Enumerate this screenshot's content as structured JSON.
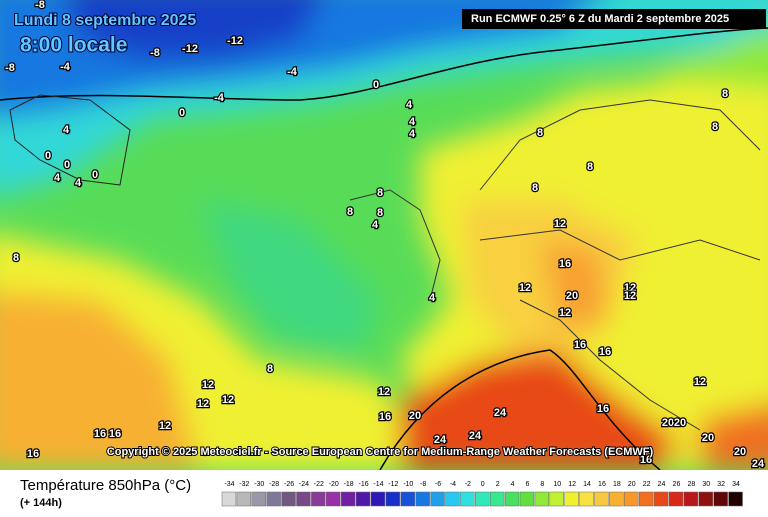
{
  "header": {
    "date": "Lundi 8 septembre 2025",
    "time": "8:00 locale",
    "run": "Run ECMWF 0.25° 6 Z du Mardi 2 septembre 2025"
  },
  "copyright": "Copyright © 2025 Meteociel.fr - Source European Centre for Medium-Range Weather Forecasts (ECMWF)",
  "legend": {
    "title": "Température 850hPa (°C)",
    "lead": "(+ 144h)",
    "scale": {
      "values": [
        -34,
        -32,
        -30,
        -28,
        -26,
        -24,
        -22,
        -20,
        -18,
        -16,
        -14,
        -12,
        -10,
        -8,
        -6,
        -4,
        -2,
        0,
        2,
        4,
        6,
        8,
        10,
        12,
        14,
        16,
        18,
        20,
        22,
        24,
        26,
        28,
        30,
        32,
        34
      ],
      "colors": [
        "#d8d8d8",
        "#b8b8b8",
        "#9898a8",
        "#807898",
        "#705880",
        "#784888",
        "#883c98",
        "#9830a8",
        "#7020a0",
        "#5018a8",
        "#3018b8",
        "#1830c8",
        "#1850d8",
        "#1878e0",
        "#20a0e8",
        "#28c8f0",
        "#30e0e0",
        "#30e8b8",
        "#38e890",
        "#48e060",
        "#60e040",
        "#90e838",
        "#c0f030",
        "#f0f030",
        "#f8e040",
        "#f8c840",
        "#f8b030",
        "#f89828",
        "#f07020",
        "#e84818",
        "#d82818",
        "#b81818",
        "#901010",
        "#600808",
        "#200000"
      ]
    }
  },
  "map": {
    "labels": [
      "-8",
      "-8",
      "-12",
      "-12",
      "-8",
      "-4",
      "-4",
      "-4",
      "0",
      "0",
      "0",
      "0",
      "0",
      "4",
      "4",
      "4",
      "4",
      "4",
      "4",
      "8",
      "8",
      "8",
      "4",
      "4",
      "8",
      "8",
      "8",
      "8",
      "8",
      "8",
      "12",
      "12",
      "16",
      "20",
      "12",
      "12",
      "12",
      "16",
      "16",
      "8",
      "12",
      "12",
      "12",
      "12",
      "12",
      "16",
      "20",
      "24",
      "24",
      "24",
      "16",
      "16",
      "16",
      "12",
      "16",
      "20",
      "20",
      "20",
      "20",
      "24",
      "16"
    ]
  }
}
